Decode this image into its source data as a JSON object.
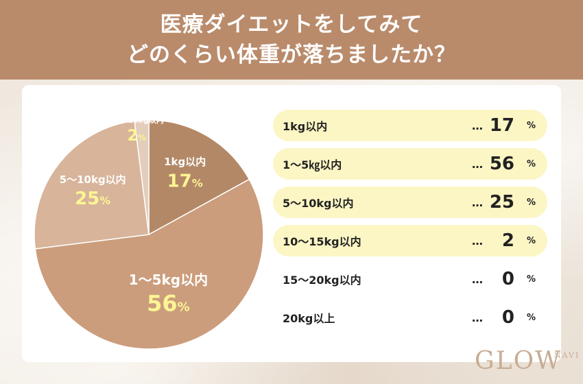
{
  "header": {
    "line1": "医療ダイエットをしてみて",
    "line2": "どのくらい体重が落ちましたか？"
  },
  "chart_data": {
    "type": "pie",
    "start": "top",
    "direction": "clockwise",
    "slices": [
      {
        "label": "1kg以内",
        "value": 17,
        "color": "#b38866"
      },
      {
        "label": "1〜5kg以内",
        "value": 56,
        "color": "#cb9d7c"
      },
      {
        "label": "5〜10kg以内",
        "value": 25,
        "color": "#d7b49a"
      },
      {
        "label": "10〜15kg以内",
        "value": 2,
        "color": "#e4cdbb"
      }
    ],
    "value_color": "#fcf594",
    "label_color": "#ffffff",
    "unit": "%"
  },
  "legend": {
    "dots": "…",
    "unit": "%",
    "highlight_color": "#fcf6c5",
    "rows": [
      {
        "label": "1kg以内",
        "value": "17",
        "highlight": true
      },
      {
        "label": "1〜5㎏以内",
        "value": "56",
        "highlight": true
      },
      {
        "label": "5〜10kg以内",
        "value": "25",
        "highlight": true
      },
      {
        "label": "10〜15kg以内",
        "value": "2",
        "highlight": true
      },
      {
        "label": "15〜20kg以内",
        "value": "0",
        "highlight": false
      },
      {
        "label": "20kg以上",
        "value": "0",
        "highlight": false
      }
    ]
  },
  "logo": {
    "text": "GLOW",
    "sub": "NAVI"
  },
  "colors": {
    "header_bg": "#b98b6b",
    "card_bg": "#ffffff",
    "logo": "#c7ad95"
  }
}
